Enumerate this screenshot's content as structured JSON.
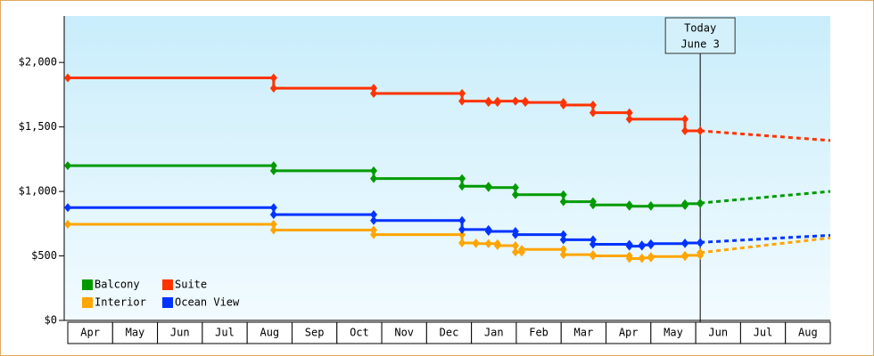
{
  "chart_data": {
    "type": "step-line",
    "categories": [
      "Apr",
      "May",
      "Jun",
      "Jul",
      "Aug",
      "Sep",
      "Oct",
      "Nov",
      "Dec",
      "Jan",
      "Feb",
      "Mar",
      "Apr",
      "May",
      "Jun",
      "Jul",
      "Aug"
    ],
    "xlim": [
      0,
      17
    ],
    "ylim": [
      0,
      2360
    ],
    "yticks": [
      {
        "value": 0,
        "label": "$0"
      },
      {
        "value": 500,
        "label": "$500"
      },
      {
        "value": 1000,
        "label": "$1,000"
      },
      {
        "value": 1500,
        "label": "$1,500"
      },
      {
        "value": 2000,
        "label": "$2,000"
      }
    ],
    "today": {
      "x": 14.1,
      "label": [
        "Today",
        "June 3"
      ]
    },
    "forecast_x": [
      14.1,
      17
    ],
    "legend": "lower left",
    "series": [
      {
        "name": "Balcony",
        "color": "#009a00",
        "x": [
          0,
          4.59,
          6.82,
          8.79,
          9.38,
          9.98,
          11.05,
          11.71,
          12.52,
          13.0,
          13.76,
          14.1
        ],
        "values": [
          1200,
          1160,
          1100,
          1040,
          1030,
          975,
          920,
          895,
          885,
          890,
          905,
          910
        ],
        "forecast": [
          910,
          1000
        ]
      },
      {
        "name": "Suite",
        "color": "#ff3300",
        "x": [
          0,
          4.59,
          6.82,
          8.79,
          9.38,
          9.58,
          9.98,
          10.2,
          11.05,
          11.71,
          12.52,
          13.76,
          14.1
        ],
        "values": [
          1880,
          1800,
          1760,
          1700,
          1690,
          1700,
          1700,
          1690,
          1670,
          1610,
          1560,
          1470,
          1470
        ],
        "forecast": [
          1470,
          1395
        ]
      },
      {
        "name": "Interior",
        "color": "#ffa500",
        "x": [
          0,
          4.59,
          6.82,
          8.79,
          9.1,
          9.38,
          9.58,
          9.98,
          10.12,
          11.05,
          11.71,
          12.52,
          12.8,
          13.0,
          13.76,
          14.1
        ],
        "values": [
          745,
          700,
          665,
          600,
          595,
          595,
          580,
          530,
          550,
          510,
          500,
          480,
          485,
          495,
          505,
          525
        ],
        "forecast": [
          525,
          640
        ]
      },
      {
        "name": "Ocean View",
        "color": "#0033ff",
        "x": [
          0,
          4.59,
          6.82,
          8.79,
          9.38,
          9.98,
          11.05,
          11.71,
          12.52,
          12.8,
          13.0,
          13.76,
          14.1
        ],
        "values": [
          875,
          820,
          775,
          705,
          690,
          665,
          625,
          590,
          575,
          585,
          595,
          600,
          605
        ],
        "forecast": [
          605,
          660
        ]
      }
    ]
  }
}
